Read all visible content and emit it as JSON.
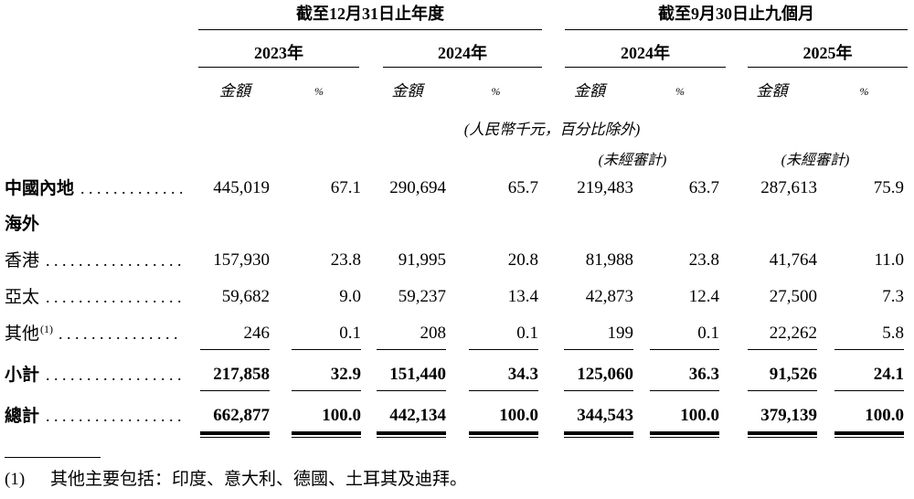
{
  "table": {
    "col_groups": [
      {
        "period": "截至12月31日止年度",
        "years": [
          "2023年",
          "2024年"
        ]
      },
      {
        "period": "截至9月30日止九個月",
        "years": [
          "2024年",
          "2025年"
        ]
      }
    ],
    "amount_label": "金額",
    "percent_label": "%",
    "unit_note": "(人民幣千元，百分比除外)",
    "unaudited_label": "(未經審計)",
    "rows": [
      {
        "label": "中國內地",
        "sup": "",
        "dots": true,
        "label_bold": true,
        "values_bold": false,
        "rule": "none",
        "values": [
          "445,019",
          "67.1",
          "290,694",
          "65.7",
          "219,483",
          "63.7",
          "287,613",
          "75.9"
        ]
      },
      {
        "label": "海外",
        "sup": "",
        "dots": false,
        "label_bold": true,
        "values_bold": false,
        "rule": "none",
        "values": []
      },
      {
        "label": "香港",
        "sup": "",
        "dots": true,
        "label_bold": false,
        "values_bold": false,
        "rule": "none",
        "values": [
          "157,930",
          "23.8",
          "91,995",
          "20.8",
          "81,988",
          "23.8",
          "41,764",
          "11.0"
        ]
      },
      {
        "label": "亞太",
        "sup": "",
        "dots": true,
        "label_bold": false,
        "values_bold": false,
        "rule": "none",
        "values": [
          "59,682",
          "9.0",
          "59,237",
          "13.4",
          "42,873",
          "12.4",
          "27,500",
          "7.3"
        ]
      },
      {
        "label": "其他",
        "sup": "(1)",
        "dots": true,
        "label_bold": false,
        "values_bold": false,
        "rule": "single",
        "values": [
          "246",
          "0.1",
          "208",
          "0.1",
          "199",
          "0.1",
          "22,262",
          "5.8"
        ]
      },
      {
        "label": "小計",
        "sup": "",
        "dots": true,
        "label_bold": true,
        "values_bold": true,
        "rule": "single",
        "values": [
          "217,858",
          "32.9",
          "151,440",
          "34.3",
          "125,060",
          "36.3",
          "91,526",
          "24.1"
        ]
      },
      {
        "label": "總計",
        "sup": "",
        "dots": true,
        "label_bold": true,
        "values_bold": true,
        "rule": "double",
        "values": [
          "662,877",
          "100.0",
          "442,134",
          "100.0",
          "344,543",
          "100.0",
          "379,139",
          "100.0"
        ]
      }
    ]
  },
  "footnote": {
    "marker": "(1)",
    "text": "其他主要包括：印度、意大利、德國、土耳其及迪拜。"
  }
}
